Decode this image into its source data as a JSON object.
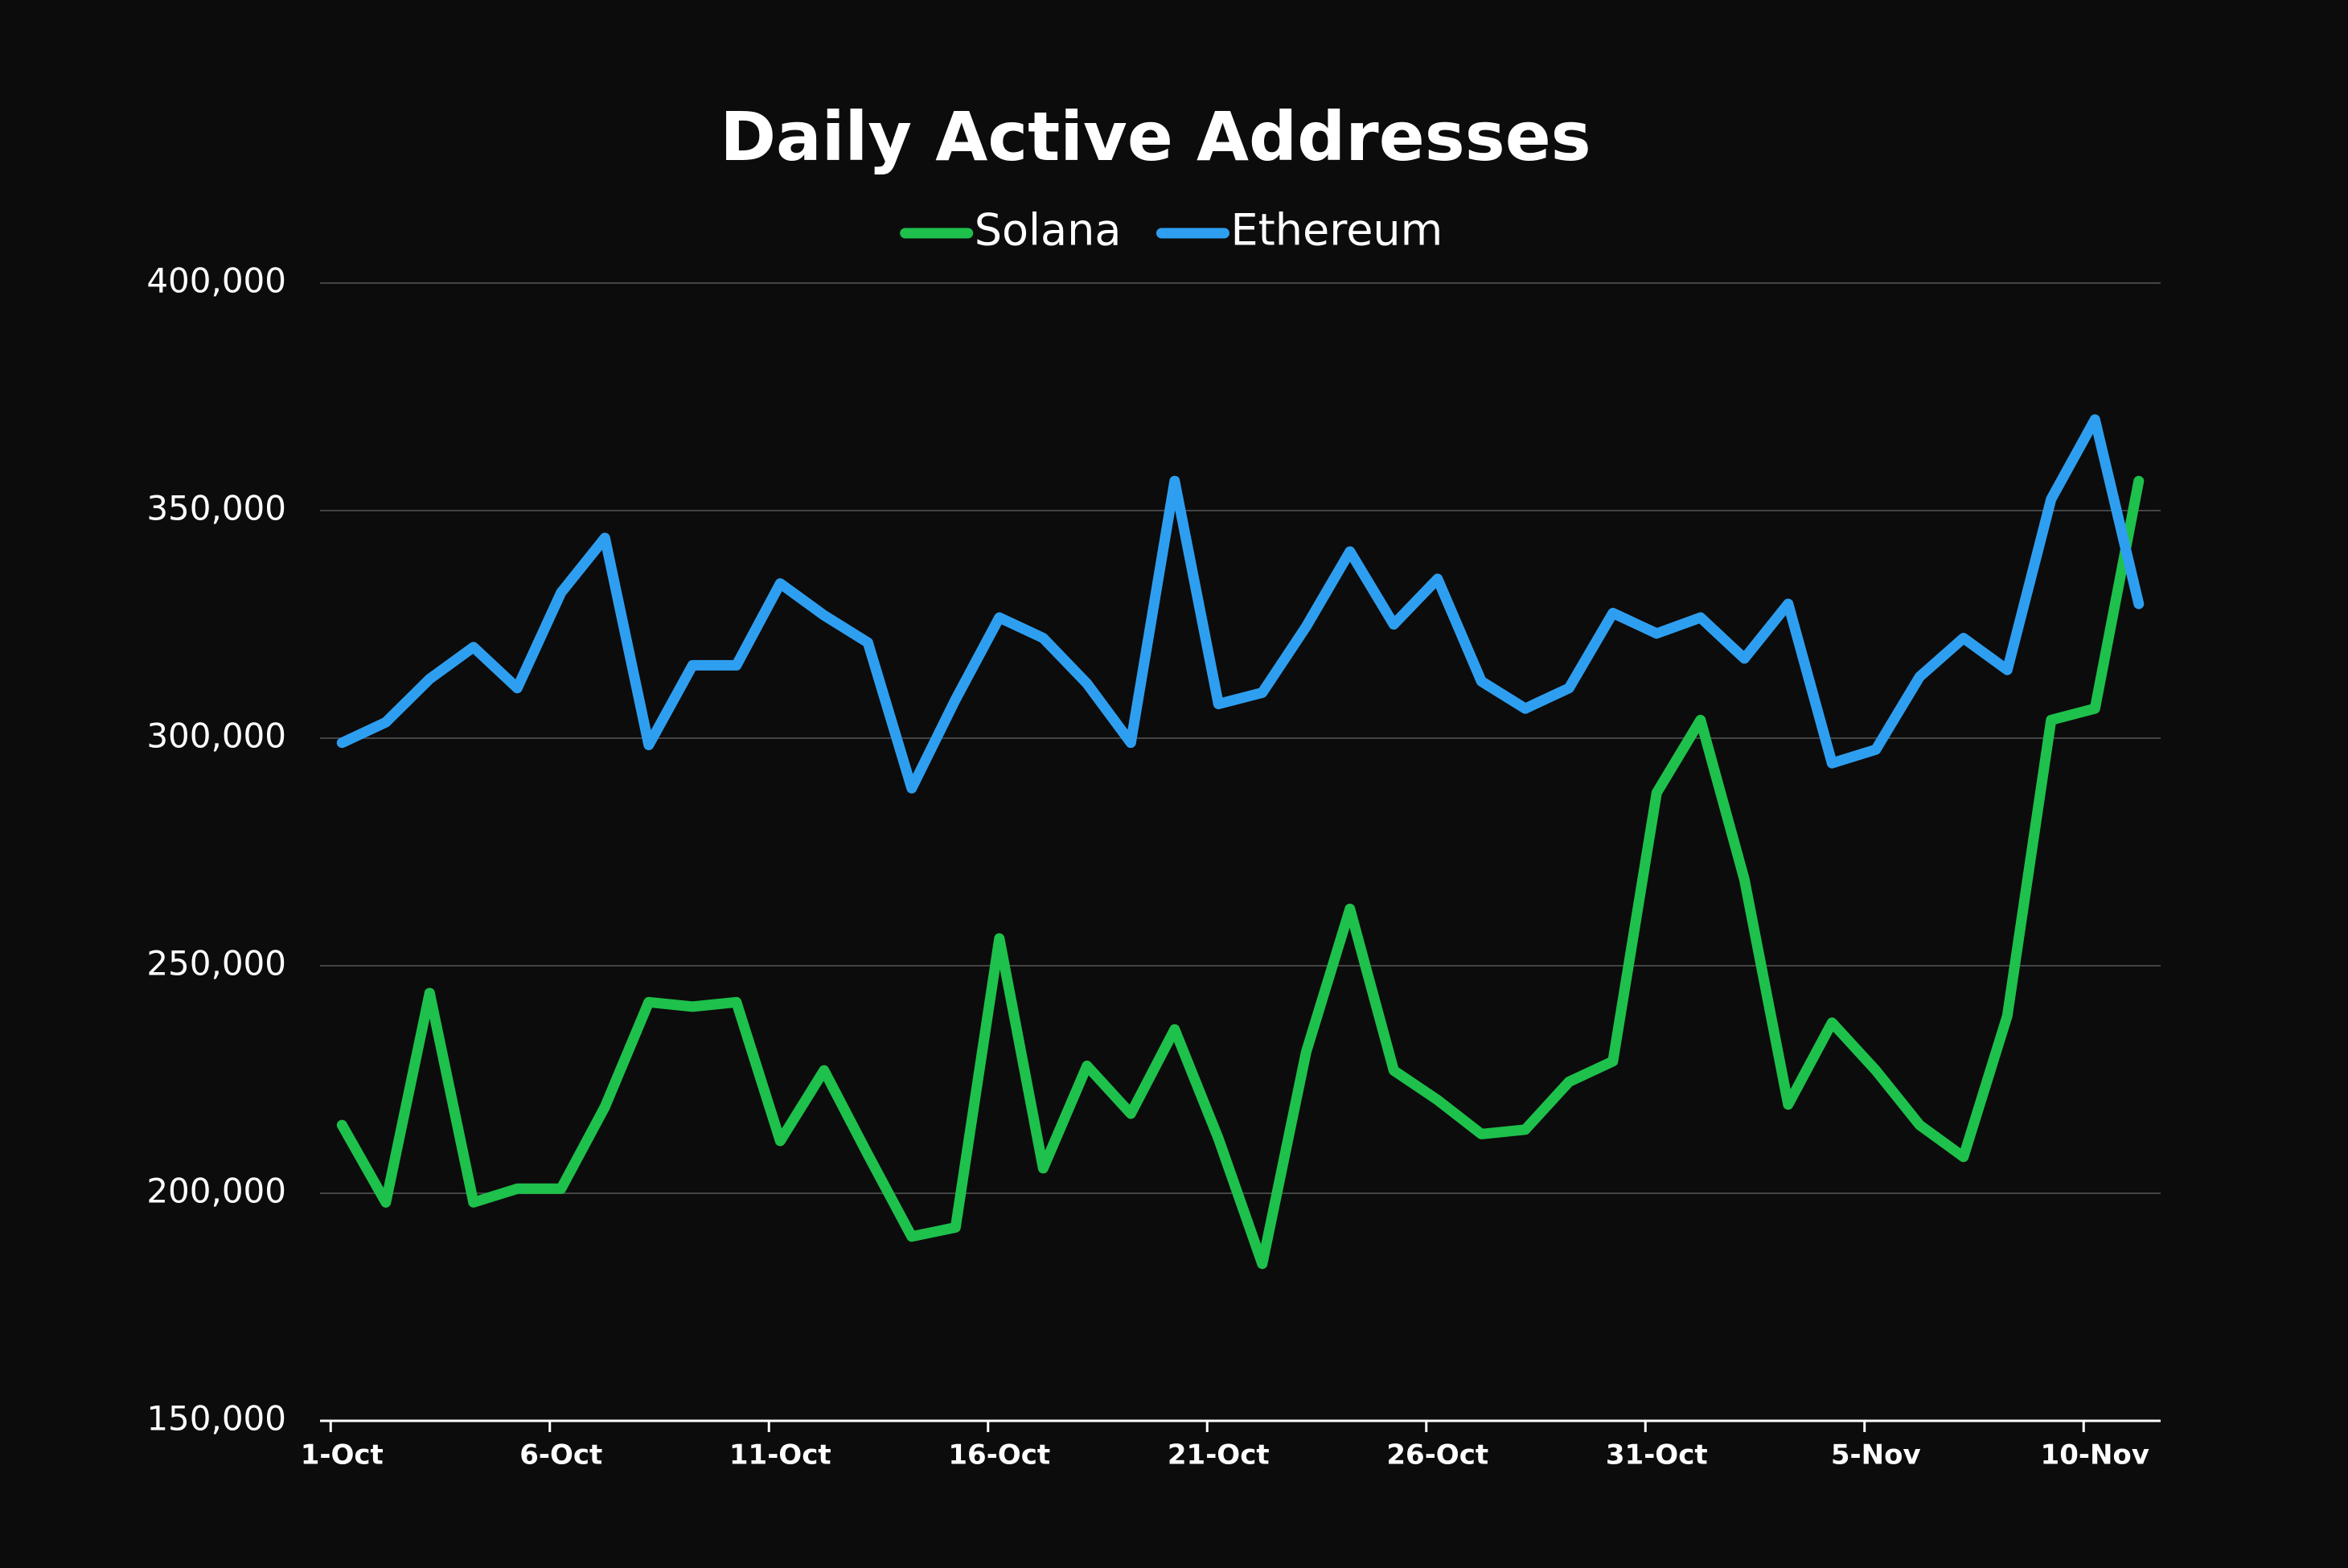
{
  "chart_data": {
    "type": "line",
    "title": "Daily Active Addresses",
    "categories": [
      "1-Oct",
      null,
      null,
      null,
      null,
      "6-Oct",
      null,
      null,
      null,
      null,
      "11-Oct",
      null,
      null,
      null,
      null,
      "16-Oct",
      null,
      null,
      null,
      null,
      "21-Oct",
      null,
      null,
      null,
      null,
      "26-Oct",
      null,
      null,
      null,
      null,
      "31-Oct",
      null,
      null,
      null,
      null,
      "5-Nov",
      null,
      null,
      null,
      null,
      "10-Nov",
      null
    ],
    "series": [
      {
        "name": "Solana",
        "color": "#1ec14b",
        "values": [
          215000,
          198000,
          244000,
          198000,
          201000,
          201000,
          219000,
          242000,
          241000,
          242000,
          211500,
          227000,
          208500,
          190500,
          192500,
          256000,
          205500,
          228000,
          217500,
          236000,
          212000,
          184500,
          231000,
          262500,
          227000,
          220500,
          213000,
          214000,
          224500,
          229000,
          288000,
          304000,
          269000,
          219500,
          237500,
          227000,
          215000,
          208000,
          239000,
          304000,
          306500,
          356500
        ]
      },
      {
        "name": "Ethereum",
        "color": "#2e9ff0",
        "values": [
          299000,
          303500,
          313000,
          320000,
          311000,
          332000,
          344000,
          298500,
          316000,
          316000,
          334000,
          327000,
          321000,
          289000,
          308500,
          326500,
          322000,
          312000,
          299000,
          356500,
          307500,
          310000,
          324500,
          341000,
          325000,
          335000,
          312500,
          306500,
          311000,
          327500,
          323000,
          326500,
          317500,
          329500,
          294500,
          297500,
          313500,
          322000,
          315000,
          352500,
          370000,
          329500
        ]
      }
    ],
    "ylim": [
      150000,
      400000
    ],
    "yticks": [
      {
        "value": 150000,
        "label": "150,000"
      },
      {
        "value": 200000,
        "label": "200,000"
      },
      {
        "value": 250000,
        "label": "250,000"
      },
      {
        "value": 300000,
        "label": "300,000"
      },
      {
        "value": 350000,
        "label": "350,000"
      },
      {
        "value": 400000,
        "label": "400,000"
      }
    ],
    "grid": true,
    "legend": "top"
  }
}
